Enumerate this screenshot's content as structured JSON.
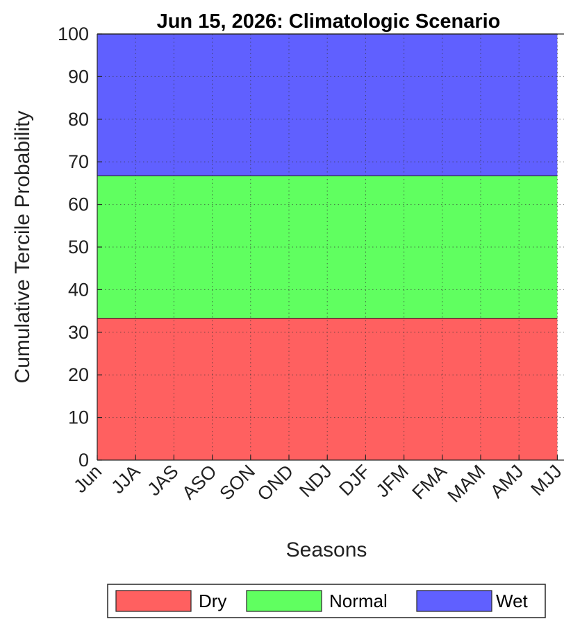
{
  "chart_data": {
    "type": "area",
    "title": "Jun 15, 2026: Climatologic Scenario",
    "xlabel": "Seasons",
    "ylabel": "Cumulative Tercile Probability",
    "categories": [
      "Jun",
      "JJA",
      "JAS",
      "ASO",
      "SON",
      "OND",
      "NDJ",
      "DJF",
      "JFM",
      "FMA",
      "MAM",
      "AMJ",
      "MJJ"
    ],
    "ylim": [
      0,
      100
    ],
    "yticks": [
      0,
      10,
      20,
      30,
      40,
      50,
      60,
      70,
      80,
      90,
      100
    ],
    "series": [
      {
        "name": "Dry",
        "color": "#ff6060",
        "values": [
          33.3,
          33.3,
          33.3,
          33.3,
          33.3,
          33.3,
          33.3,
          33.3,
          33.3,
          33.3,
          33.3,
          33.3,
          33.3
        ]
      },
      {
        "name": "Normal",
        "color": "#60ff60",
        "values": [
          33.4,
          33.4,
          33.4,
          33.4,
          33.4,
          33.4,
          33.4,
          33.4,
          33.4,
          33.4,
          33.4,
          33.4,
          33.4
        ]
      },
      {
        "name": "Wet",
        "color": "#6060ff",
        "values": [
          33.3,
          33.3,
          33.3,
          33.3,
          33.3,
          33.3,
          33.3,
          33.3,
          33.3,
          33.3,
          33.3,
          33.3,
          33.3
        ]
      }
    ],
    "stacked": true,
    "grid": true,
    "legend": "bottom"
  }
}
